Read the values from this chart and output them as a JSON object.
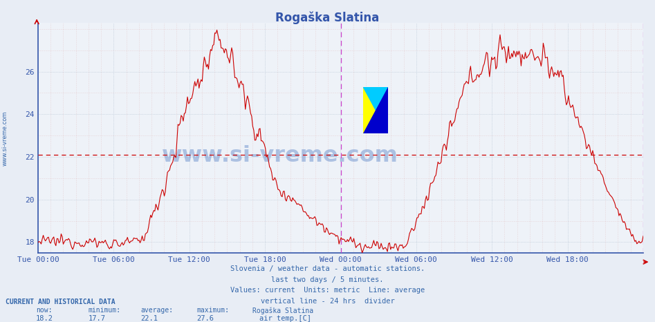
{
  "title": "Rogaška Slatina",
  "title_color": "#3355aa",
  "bg_color": "#e8edf5",
  "plot_bg_color": "#eef2f8",
  "line_color": "#cc0000",
  "average_line_color": "#cc0000",
  "average_value": 22.1,
  "ymin": 17.5,
  "ymax": 28.3,
  "yticks": [
    18,
    20,
    22,
    24,
    26
  ],
  "xlabel_color": "#3355aa",
  "ylabel_color": "#3355aa",
  "grid_color_major": "#aabbcc",
  "grid_color_minor_pink": "#ddaaaa",
  "axis_spine_color": "#3355aa",
  "xtick_labels": [
    "Tue 00:00",
    "Tue 06:00",
    "Tue 12:00",
    "Tue 18:00",
    "Wed 00:00",
    "Wed 06:00",
    "Wed 12:00",
    "Wed 18:00"
  ],
  "now_value": "18.2",
  "min_value": "17.7",
  "avg_value": "22.1",
  "max_value": "27.6",
  "station_name": "Rogaška Slatina",
  "data_label": "air temp.[C]",
  "footer_text1": "Slovenia / weather data - automatic stations.",
  "footer_text2": "last two days / 5 minutes.",
  "footer_text3": "Values: current  Units: metric  Line: average",
  "footer_text4": "vertical line - 24 hrs  divider",
  "footer_color": "#3366aa",
  "watermark_text": "www.si-vreme.com",
  "watermark_color": "#3366bb",
  "sidebar_text": "www.si-vreme.com",
  "sidebar_color": "#3366aa",
  "n_points": 576,
  "total_hours": 48,
  "divider_color": "#cc44cc",
  "end_line_color": "#cc44cc"
}
